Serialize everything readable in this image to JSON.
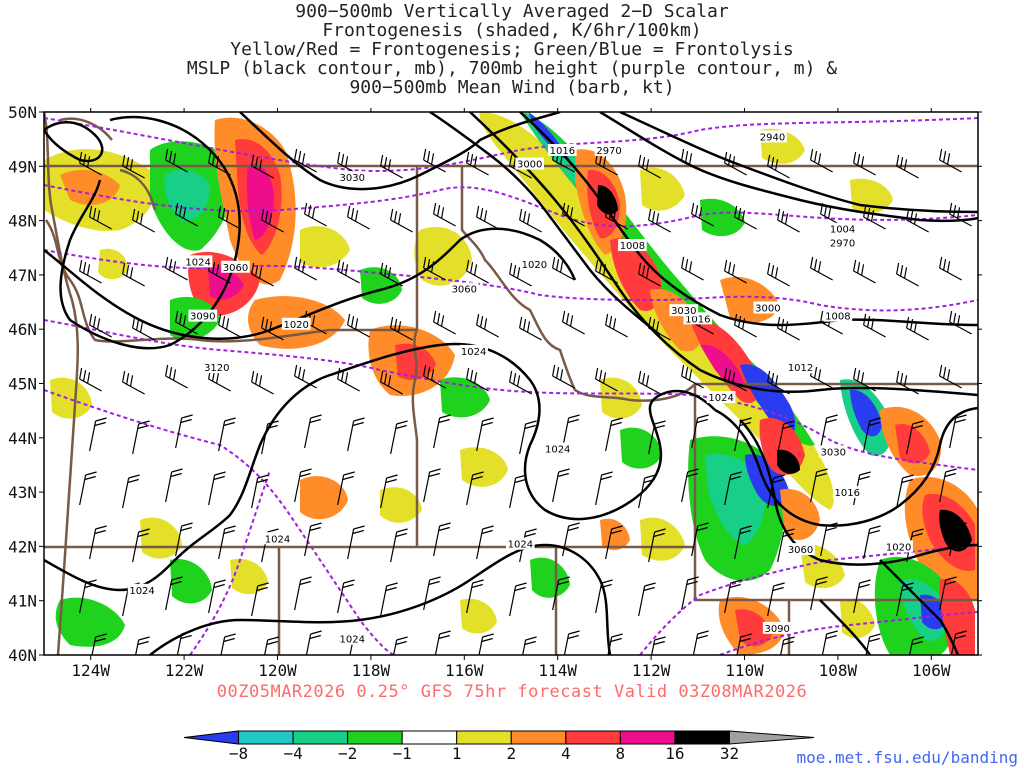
{
  "title": {
    "line1": "900−500mb Vertically Averaged 2−D Scalar",
    "line2": "Frontogenesis (shaded, K/6hr/100km)",
    "line3": "Yellow/Red = Frontogenesis;  Green/Blue = Frontolysis",
    "line4": "MSLP (black contour, mb), 700mb height (purple contour, m) &",
    "line5": "900−500mb Mean Wind (barb, kt)"
  },
  "forecast_label": "00Z05MAR2026 0.25° GFS 75hr forecast Valid 03Z08MAR2026",
  "credit": "moe.met.fsu.edu/banding",
  "map": {
    "lon_range": [
      -125.0,
      -105.0
    ],
    "lat_range": [
      40.0,
      50.0
    ],
    "lat_ticks": [
      "40N",
      "41N",
      "42N",
      "43N",
      "44N",
      "45N",
      "46N",
      "47N",
      "48N",
      "49N",
      "50N"
    ],
    "lon_ticks": [
      "124W",
      "122W",
      "120W",
      "118W",
      "116W",
      "114W",
      "112W",
      "110W",
      "108W",
      "106W"
    ],
    "lat_tick_values": [
      40,
      41,
      42,
      43,
      44,
      45,
      46,
      47,
      48,
      49,
      50
    ],
    "lon_tick_values": [
      -124,
      -122,
      -120,
      -118,
      -116,
      -114,
      -112,
      -110,
      -108,
      -106
    ],
    "mslp_labels": [
      {
        "text": "1024",
        "lon": -121.7,
        "lat": 47.25
      },
      {
        "text": "1020",
        "lon": -119.6,
        "lat": 46.1
      },
      {
        "text": "1016",
        "lon": -113.9,
        "lat": 49.3
      },
      {
        "text": "1020",
        "lon": -114.5,
        "lat": 47.2
      },
      {
        "text": "1008",
        "lon": -112.4,
        "lat": 47.55
      },
      {
        "text": "1024",
        "lon": -115.8,
        "lat": 45.6
      },
      {
        "text": "1016",
        "lon": -111.0,
        "lat": 46.2
      },
      {
        "text": "1012",
        "lon": -108.8,
        "lat": 45.3
      },
      {
        "text": "1008",
        "lon": -108.0,
        "lat": 46.25
      },
      {
        "text": "1004",
        "lon": -107.9,
        "lat": 47.85
      },
      {
        "text": "1024",
        "lon": -110.5,
        "lat": 44.75
      },
      {
        "text": "1024",
        "lon": -114.0,
        "lat": 43.8
      },
      {
        "text": "1016",
        "lon": -107.8,
        "lat": 43.0
      },
      {
        "text": "1020",
        "lon": -106.7,
        "lat": 42.0
      },
      {
        "text": "1024",
        "lon": -120.0,
        "lat": 42.15
      },
      {
        "text": "1024",
        "lon": -114.8,
        "lat": 42.05
      },
      {
        "text": "1024",
        "lon": -122.9,
        "lat": 41.2
      },
      {
        "text": "1024",
        "lon": -118.4,
        "lat": 40.3
      }
    ],
    "height_labels": [
      {
        "text": "3030",
        "lon": -118.4,
        "lat": 48.8
      },
      {
        "text": "3000",
        "lon": -114.6,
        "lat": 49.05
      },
      {
        "text": "2970",
        "lon": -112.9,
        "lat": 49.3
      },
      {
        "text": "2940",
        "lon": -109.4,
        "lat": 49.55
      },
      {
        "text": "2970",
        "lon": -107.9,
        "lat": 47.6
      },
      {
        "text": "3060",
        "lon": -120.9,
        "lat": 47.15
      },
      {
        "text": "3060",
        "lon": -116.0,
        "lat": 46.75
      },
      {
        "text": "3030",
        "lon": -111.3,
        "lat": 46.35
      },
      {
        "text": "3000",
        "lon": -109.5,
        "lat": 46.4
      },
      {
        "text": "3090",
        "lon": -121.6,
        "lat": 46.25
      },
      {
        "text": "3120",
        "lon": -121.3,
        "lat": 45.3
      },
      {
        "text": "3030",
        "lon": -108.1,
        "lat": 43.75
      },
      {
        "text": "3060",
        "lon": -108.8,
        "lat": 41.95
      },
      {
        "text": "3090",
        "lon": -109.3,
        "lat": 40.5
      }
    ]
  },
  "colorbar": {
    "levels": [
      "−8",
      "−4",
      "−2",
      "−1",
      "1",
      "2",
      "4",
      "8",
      "16",
      "32"
    ],
    "colors": [
      "#2a3cf0",
      "#20c8c8",
      "#18cf88",
      "#1ed21e",
      "#ffffff",
      "#e4e02a",
      "#ff8c28",
      "#ff3b3b",
      "#ee0e8c",
      "#000000",
      "#a0a0a0"
    ]
  },
  "colors": {
    "mslp": "#000000",
    "height": "#a020e0",
    "border": "#7a5a46",
    "frontogenesis_weak": "#e4e02a",
    "frontogenesis_mod": "#ff8c28",
    "frontogenesis_strong": "#ff3b3b",
    "frontolysis_weak": "#1ed21e",
    "frontolysis_mod": "#18cf88",
    "frontolysis_strong": "#2a3cf0"
  }
}
